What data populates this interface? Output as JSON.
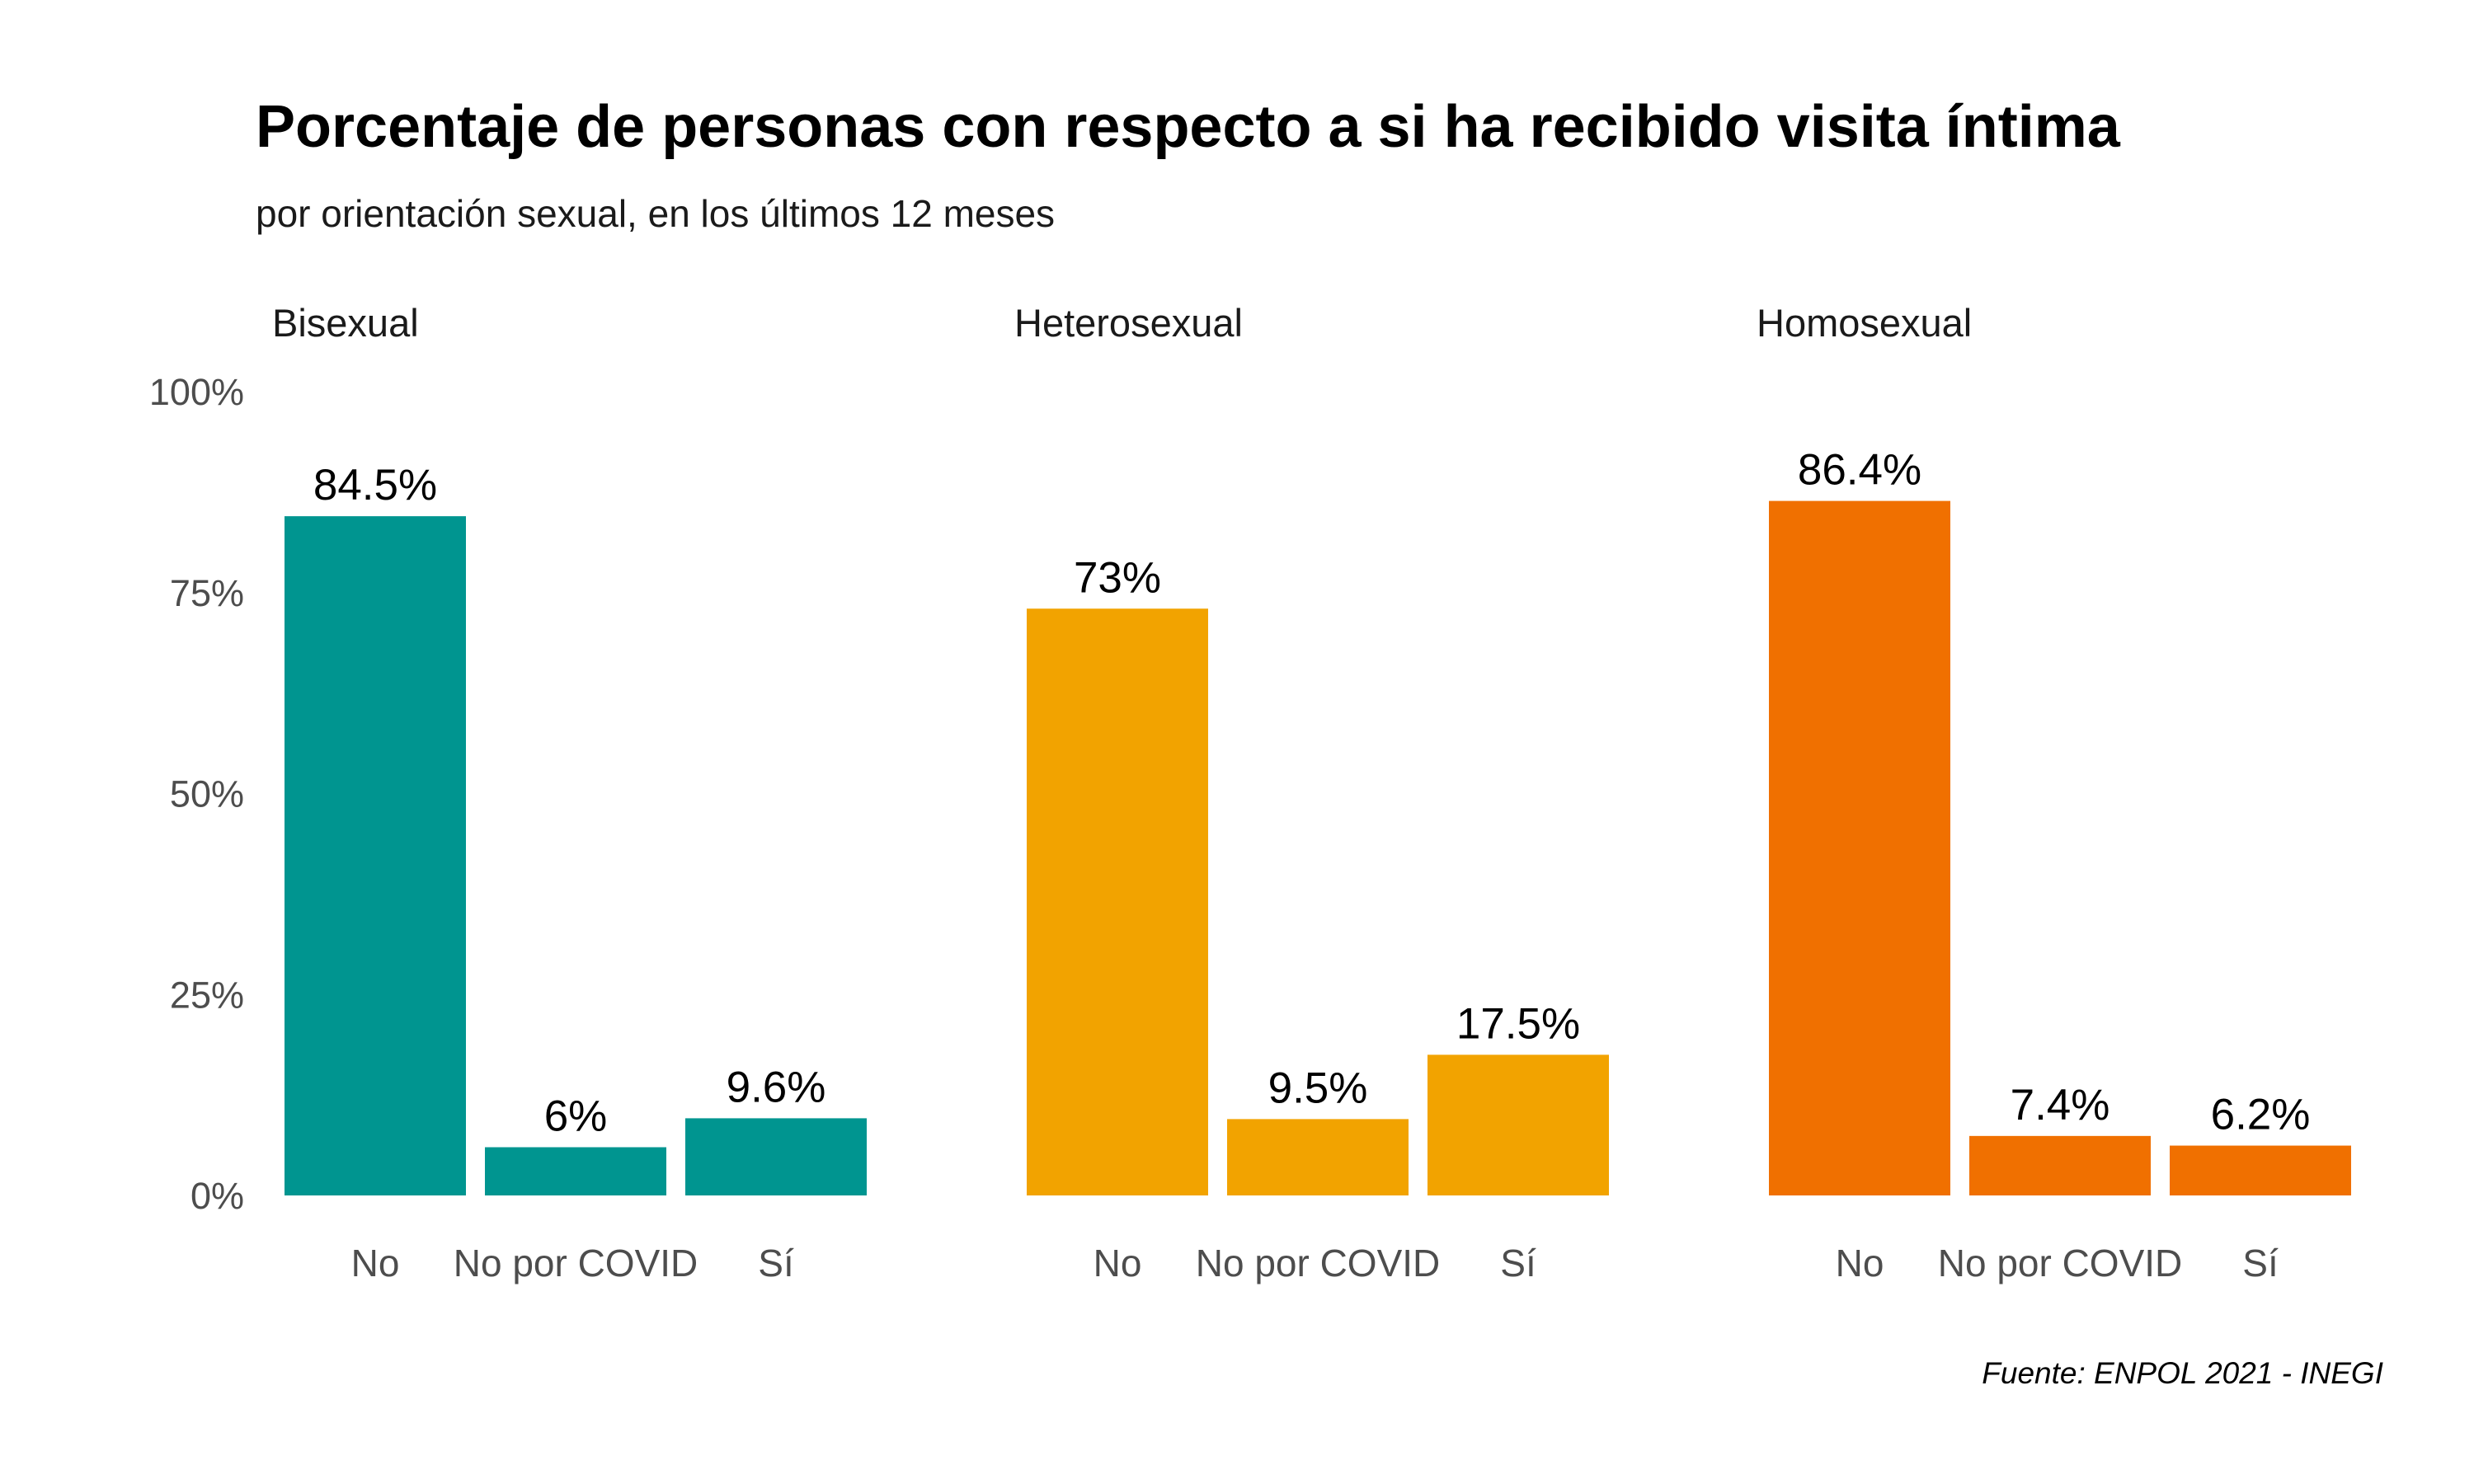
{
  "title": "Porcentaje de personas con respecto a si ha recibido visita íntima",
  "subtitle": "por orientación sexual, en los últimos 12 meses",
  "caption": "Fuente: ENPOL 2021 - INEGI",
  "chart_data": {
    "type": "bar",
    "facet_by": "orientación sexual",
    "categories": [
      "No",
      "No por COVID",
      "Sí"
    ],
    "y_ticks": [
      "0%",
      "25%",
      "50%",
      "75%",
      "100%"
    ],
    "ylim": [
      0,
      100
    ],
    "grid": false,
    "legend": "none",
    "panels": [
      {
        "name": "Bisexual",
        "color": "#009590",
        "values": [
          84.5,
          6,
          9.6
        ],
        "labels": [
          "84.5%",
          "6%",
          "9.6%"
        ]
      },
      {
        "name": "Heterosexual",
        "color": "#F2A300",
        "values": [
          73,
          9.5,
          17.5
        ],
        "labels": [
          "73%",
          "9.5%",
          "17.5%"
        ]
      },
      {
        "name": "Homosexual",
        "color": "#F07000",
        "values": [
          86.4,
          7.4,
          6.2
        ],
        "labels": [
          "86.4%",
          "7.4%",
          "6.2%"
        ]
      }
    ]
  }
}
